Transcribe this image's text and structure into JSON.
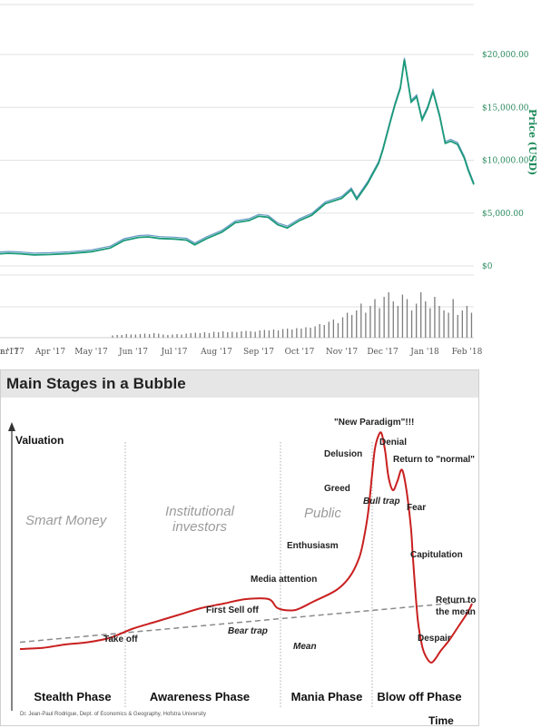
{
  "chart_data": [
    {
      "type": "line",
      "ylabel": "Price (USD)",
      "ylim": [
        0,
        20000
      ],
      "yticks": [
        "$0",
        "$5,000.00",
        "$10,000.00",
        "$15,000.00",
        "$20,000.00"
      ],
      "ytick_values": [
        0,
        5000,
        10000,
        15000,
        20000
      ],
      "xticks": [
        "Mar '17",
        "Apr '17",
        "May '17",
        "Jun '17",
        "Jul '17",
        "Aug '17",
        "Sep '17",
        "Oct '17",
        "Nov '17",
        "Dec '17",
        "Jan '18",
        "Feb '18"
      ],
      "xtick_partial": "r '17",
      "x_range": [
        "2017-02-23",
        "2018-02-06"
      ],
      "series": [
        {
          "x": [
            "2017-02-23",
            "2017-03-01",
            "2017-03-10",
            "2017-03-20",
            "2017-04-01",
            "2017-04-15",
            "2017-05-01",
            "2017-05-15",
            "2017-05-25",
            "2017-06-05",
            "2017-06-12",
            "2017-06-20",
            "2017-07-01",
            "2017-07-10",
            "2017-07-16",
            "2017-07-25",
            "2017-08-05",
            "2017-08-15",
            "2017-08-25",
            "2017-09-01",
            "2017-09-08",
            "2017-09-15",
            "2017-09-22",
            "2017-10-01",
            "2017-10-10",
            "2017-10-20",
            "2017-11-01",
            "2017-11-08",
            "2017-11-12",
            "2017-11-20",
            "2017-11-28",
            "2017-12-01",
            "2017-12-07",
            "2017-12-10",
            "2017-12-14",
            "2017-12-17",
            "2017-12-22",
            "2017-12-26",
            "2017-12-30",
            "2018-01-03",
            "2018-01-07",
            "2018-01-12",
            "2018-01-16",
            "2018-01-20",
            "2018-01-25",
            "2018-01-30",
            "2018-02-02",
            "2018-02-06"
          ],
          "values": [
            1150,
            1200,
            1150,
            1050,
            1080,
            1180,
            1350,
            1700,
            2400,
            2700,
            2750,
            2600,
            2550,
            2450,
            2000,
            2600,
            3200,
            4100,
            4300,
            4700,
            4600,
            3900,
            3600,
            4300,
            4800,
            5900,
            6400,
            7200,
            6300,
            7800,
            9700,
            10900,
            13800,
            15200,
            16800,
            19500,
            15500,
            16000,
            13800,
            14900,
            16500,
            14100,
            11600,
            11800,
            11500,
            10200,
            9000,
            7700
          ]
        }
      ],
      "volume": {
        "x_range": [
          "2017-05-15",
          "2018-02-06"
        ],
        "relative_heights": [
          0.05,
          0.06,
          0.06,
          0.08,
          0.07,
          0.07,
          0.08,
          0.09,
          0.08,
          0.1,
          0.09,
          0.07,
          0.06,
          0.07,
          0.08,
          0.07,
          0.09,
          0.1,
          0.11,
          0.1,
          0.12,
          0.1,
          0.13,
          0.12,
          0.14,
          0.12,
          0.13,
          0.12,
          0.14,
          0.15,
          0.14,
          0.13,
          0.16,
          0.17,
          0.16,
          0.18,
          0.16,
          0.19,
          0.2,
          0.18,
          0.21,
          0.2,
          0.23,
          0.22,
          0.25,
          0.3,
          0.28,
          0.35,
          0.4,
          0.32,
          0.45,
          0.55,
          0.5,
          0.6,
          0.75,
          0.55,
          0.7,
          0.85,
          0.65,
          0.9,
          1.0,
          0.8,
          0.7,
          0.95,
          0.85,
          0.6,
          0.75,
          1.0,
          0.8,
          0.65,
          0.9,
          0.7,
          0.6,
          0.55,
          0.85,
          0.5,
          0.6,
          0.7,
          0.55
        ]
      }
    },
    {
      "type": "line",
      "title": "Main Stages in a Bubble",
      "ylabel": "Valuation",
      "xlabel": "Time",
      "credit": "Dr. Jean-Paul Rodrigue, Dept. of Economics & Geography, Hofstra University",
      "group_labels": [
        "Smart Money",
        "Institutional investors",
        "Public"
      ],
      "phases": [
        "Stealth Phase",
        "Awareness Phase",
        "Mania Phase",
        "Blow off Phase"
      ],
      "mean_line": {
        "name": "Mean",
        "x": [
          0,
          100
        ],
        "y": [
          5,
          23
        ]
      },
      "series": [
        {
          "name": "Valuation",
          "x": [
            0,
            5,
            10,
            15,
            20,
            25,
            30,
            35,
            40,
            45,
            50,
            55,
            57,
            60,
            62,
            65,
            70,
            73,
            75,
            76,
            77,
            77.8,
            78.5,
            79.3,
            80,
            80.8,
            81.5,
            82.5,
            83.5,
            84.5,
            85.5,
            86.5,
            87,
            88,
            89,
            90,
            91,
            92,
            93,
            95,
            97,
            99,
            100
          ],
          "y": [
            2,
            2.5,
            4,
            5,
            7,
            11,
            14,
            17,
            20,
            22,
            24,
            24,
            20,
            19,
            20,
            23,
            28,
            34,
            42,
            50,
            62,
            77,
            90,
            96,
            97,
            89,
            78,
            72,
            76,
            81,
            72,
            55,
            40,
            15,
            3,
            -2,
            -4,
            -2,
            1,
            6,
            12,
            18,
            22
          ]
        }
      ],
      "annotations": [
        "Take off",
        "First Sell off",
        "Bear trap",
        "Media attention",
        "Enthusiasm",
        "Greed",
        "Delusion",
        "\"New Paradigm\"!!!",
        "Denial",
        "Return to \"normal\"",
        "Bull trap",
        "Fear",
        "Capitulation",
        "Despair",
        "Return to the mean",
        "Mean"
      ]
    }
  ],
  "colors": {
    "price_line": "#1a9a78",
    "price_line_shadow": "#3f7fb6",
    "axis_text": "#2b8a5e",
    "volume": "#7d7d7d",
    "grid": "#e2e2e2",
    "bubble_curve": "#c92020",
    "mean_line": "#8a8a8a",
    "title_band": "#e6e6e6"
  }
}
